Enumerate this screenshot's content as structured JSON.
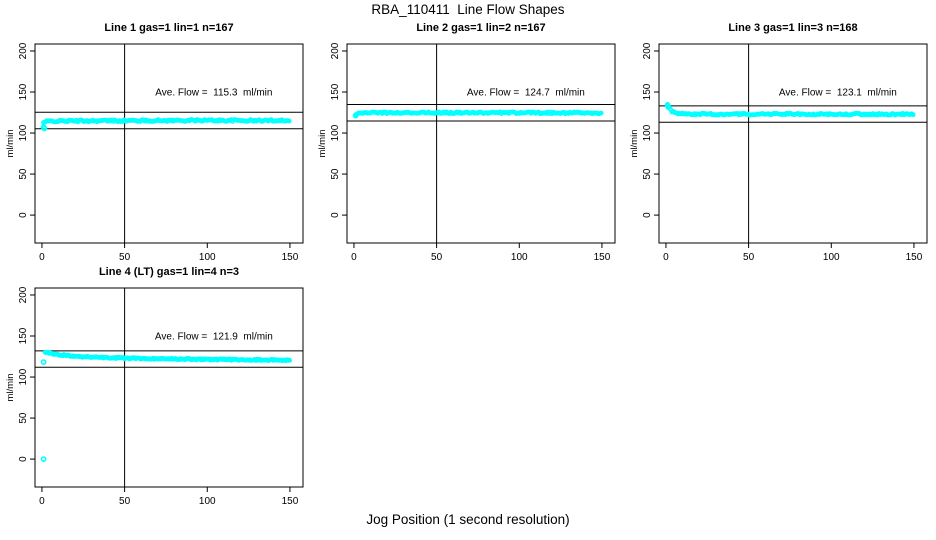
{
  "title": "RBA_110411  Line Flow Shapes",
  "xlabel": "Jog Position (1 second resolution)",
  "colors": {
    "points": "#00FFFF",
    "axis": "#000000",
    "background": "#FFFFFF"
  },
  "chart_data": [
    {
      "type": "scatter",
      "title": "Line 1 gas=1 lin=1 n=167",
      "n": 167,
      "ave_flow": 115.3,
      "annotation": "Ave. Flow =  115.3  ml/min",
      "annotation_xy": [
        104,
        146
      ],
      "ylabel": "ml/min",
      "xticks": [
        0,
        50,
        100,
        150
      ],
      "yticks": [
        0,
        50,
        100,
        150,
        200
      ],
      "xlim": [
        -4.2,
        157.9
      ],
      "ylim": [
        -34,
        208.5
      ],
      "ref_vline_x": 50,
      "ref_hlines": [
        125.3,
        105.3
      ],
      "series": {
        "name": "flow",
        "marker": "open-circle",
        "color": "#00FFFF",
        "x_start": 1,
        "x_end": 150,
        "x_step": 0.9,
        "noise": 1.1,
        "keypoints": [
          [
            1,
            112.5
          ],
          [
            3,
            114.2
          ],
          [
            10,
            114.6
          ],
          [
            30,
            114.9
          ],
          [
            60,
            115.1
          ],
          [
            100,
            115.4
          ],
          [
            130,
            115.1
          ],
          [
            150,
            115.6
          ]
        ]
      },
      "outliers": [
        [
          1,
          107.2
        ],
        [
          1.5,
          105.6
        ]
      ]
    },
    {
      "type": "scatter",
      "title": "Line 2 gas=1 lin=2 n=167",
      "n": 167,
      "ave_flow": 124.7,
      "annotation": "Ave. Flow =  124.7  ml/min",
      "annotation_xy": [
        104,
        146
      ],
      "ylabel": "ml/min",
      "xticks": [
        0,
        50,
        100,
        150
      ],
      "yticks": [
        0,
        50,
        100,
        150,
        200
      ],
      "xlim": [
        -4.2,
        157.9
      ],
      "ylim": [
        -34,
        208.5
      ],
      "ref_vline_x": 50,
      "ref_hlines": [
        134.7,
        114.7
      ],
      "series": {
        "name": "flow",
        "marker": "open-circle",
        "color": "#00FFFF",
        "x_start": 1,
        "x_end": 150,
        "x_step": 0.9,
        "noise": 1.0,
        "keypoints": [
          [
            1,
            122.8
          ],
          [
            2,
            124.0
          ],
          [
            5,
            124.6
          ],
          [
            50,
            124.8
          ],
          [
            100,
            124.7
          ],
          [
            150,
            124.5
          ]
        ]
      },
      "outliers": [
        [
          1,
          121.3
        ]
      ]
    },
    {
      "type": "scatter",
      "title": "Line 3 gas=1 lin=3 n=168",
      "n": 168,
      "ave_flow": 123.1,
      "annotation": "Ave. Flow =  123.1  ml/min",
      "annotation_xy": [
        104,
        146
      ],
      "ylabel": "ml/min",
      "xticks": [
        0,
        50,
        100,
        150
      ],
      "yticks": [
        0,
        50,
        100,
        150,
        200
      ],
      "xlim": [
        -4.2,
        157.9
      ],
      "ylim": [
        -34,
        208.5
      ],
      "ref_vline_x": 50,
      "ref_hlines": [
        133.1,
        113.1
      ],
      "series": {
        "name": "flow",
        "marker": "open-circle",
        "color": "#00FFFF",
        "x_start": 1,
        "x_end": 150,
        "x_step": 0.9,
        "noise": 1.0,
        "keypoints": [
          [
            1,
            133.6
          ],
          [
            2,
            130.2
          ],
          [
            3,
            127.6
          ],
          [
            4,
            126.0
          ],
          [
            6,
            124.6
          ],
          [
            9,
            123.6
          ],
          [
            15,
            123.1
          ],
          [
            30,
            122.9
          ],
          [
            60,
            123.0
          ],
          [
            100,
            123.1
          ],
          [
            150,
            122.8
          ]
        ]
      },
      "outliers": [
        [
          1,
          134.3
        ],
        [
          1.4,
          131.8
        ]
      ]
    },
    {
      "type": "scatter",
      "title": "Line 4 (LT) gas=1 lin=4 n=3",
      "n": 3,
      "ave_flow": 121.9,
      "annotation": "Ave. Flow =  121.9  ml/min",
      "annotation_xy": [
        104,
        146
      ],
      "ylabel": "ml/min",
      "xticks": [
        0,
        50,
        100,
        150
      ],
      "yticks": [
        0,
        50,
        100,
        150,
        200
      ],
      "xlim": [
        -4.2,
        157.9
      ],
      "ylim": [
        -34,
        208.5
      ],
      "ref_vline_x": 50,
      "ref_hlines": [
        131.9,
        111.9
      ],
      "series": {
        "name": "flow",
        "marker": "open-circle",
        "color": "#00FFFF",
        "x_start": 2,
        "x_end": 150,
        "x_step": 0.75,
        "noise": 0.8,
        "keypoints": [
          [
            2,
            130.3
          ],
          [
            4,
            129.4
          ],
          [
            7,
            128.2
          ],
          [
            12,
            126.8
          ],
          [
            20,
            125.3
          ],
          [
            30,
            124.2
          ],
          [
            45,
            123.3
          ],
          [
            60,
            122.6
          ],
          [
            80,
            122.0
          ],
          [
            100,
            121.5
          ],
          [
            125,
            121.0
          ],
          [
            150,
            120.4
          ]
        ]
      },
      "outliers": [
        [
          1,
          0
        ],
        [
          1,
          118.2
        ]
      ]
    }
  ]
}
